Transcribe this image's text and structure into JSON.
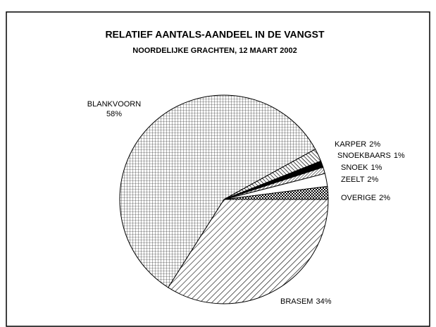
{
  "chart_data": {
    "type": "pie",
    "title": "RELATIEF AANTALS-AANDEEL IN DE VANGST",
    "subtitle": "NOORDELIJKE GRACHTEN, 12 MAART 2002",
    "categories": [
      "BRASEM",
      "BLANKVOORN",
      "KARPER",
      "SNOEKBAARS",
      "SNOEK",
      "ZEELT",
      "OVERIGE"
    ],
    "values": [
      34,
      58,
      2,
      1,
      1,
      2,
      2
    ],
    "value_labels": [
      "34%",
      "58%",
      "2%",
      "1%",
      "1%",
      "2%",
      "2%"
    ],
    "patterns": [
      "diagonal",
      "grid",
      "back-diagonal",
      "solid",
      "dense-diagonal",
      "none",
      "checker"
    ]
  }
}
